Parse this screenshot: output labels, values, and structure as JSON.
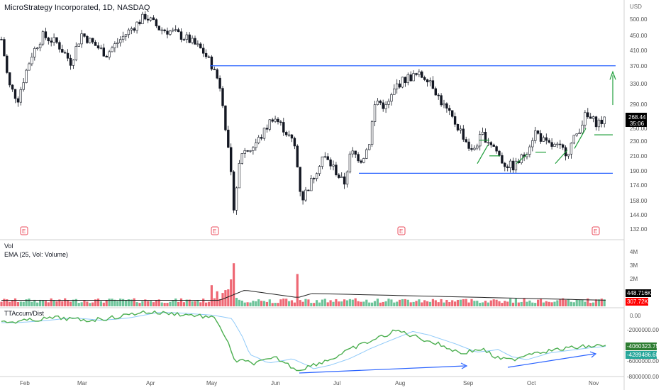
{
  "header": {
    "symbol_title": "MicroStrategy Incorporated, 1D, NASDAQ",
    "currency": "USD"
  },
  "colors": {
    "up": "#53b987",
    "down": "#eb4d5c",
    "accent_blue": "#2962ff",
    "green_annotation": "#1e9e3a",
    "ema_line": "#222222",
    "accum_line": "#4caf50",
    "accum_signal": "#90caf9",
    "price_tag_bg": "#000000",
    "vol_tag_dark": "#000000",
    "vol_tag_red": "#ff0000",
    "accum_tag_green": "#2e7d32",
    "accum_tag_teal": "#26a69a"
  },
  "price_axis": {
    "ticks": [
      "500.00",
      "450.00",
      "410.00",
      "370.00",
      "330.00",
      "290.00",
      "250.00",
      "230.00",
      "210.00",
      "190.00",
      "174.00",
      "158.00",
      "144.00",
      "132.00"
    ],
    "last_price": "268.44",
    "countdown": "35:06"
  },
  "volume_pane": {
    "title": "Vol",
    "ema_label": "EMA (25, Vol: Volume)",
    "ticks": [
      "4M",
      "3M",
      "2M"
    ],
    "ema_tag": "448.716K",
    "vol_tag": "307.72K"
  },
  "accum_pane": {
    "title": "TTAccum/Dist",
    "ticks": [
      "0.00",
      "-2000000.00",
      "-6000000.00",
      "-8000000.00"
    ],
    "tag_main": "-4060323.75",
    "tag_signal": "-4289486.68"
  },
  "x_axis": {
    "labels": [
      "Feb",
      "Mar",
      "Apr",
      "May",
      "Jun",
      "Jul",
      "Aug",
      "Sep",
      "Oct",
      "Nov"
    ]
  },
  "earnings_markers": [
    "E",
    "E",
    "E",
    "E"
  ],
  "chart_data": {
    "type": "candlestick",
    "title": "MicroStrategy Incorporated, 1D, NASDAQ",
    "ylabel": "USD",
    "ylim": [
      125,
      560
    ],
    "y_scale": "log",
    "x": [
      "Feb",
      "Mar",
      "Apr",
      "May",
      "Jun",
      "Jul",
      "Aug",
      "Sep",
      "Oct",
      "Nov"
    ],
    "close_approx": [
      440,
      455,
      510,
      420,
      178,
      160,
      300,
      240,
      200,
      262
    ],
    "resistance_level": 372,
    "support_level": 188,
    "volume_ema_last": 448716,
    "volume_last": 307720,
    "accum_dist_last": -4060323.75,
    "accum_dist_signal_last": -4289486.68
  }
}
